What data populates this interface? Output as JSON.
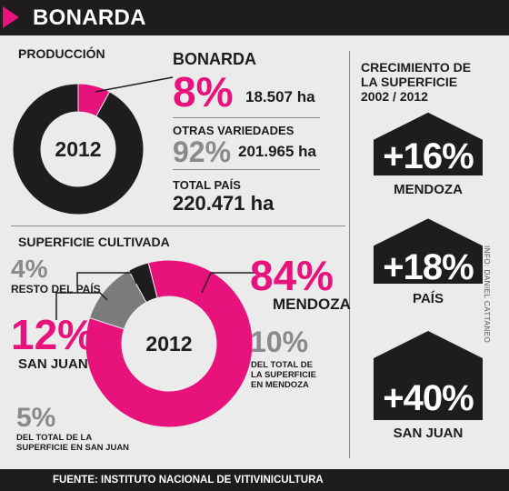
{
  "header": {
    "title": "BONARDA"
  },
  "produccion": {
    "title": "PRODUCCIÓN",
    "year": "2012",
    "bonarda_label": "BONARDA",
    "bonarda_pct": "8%",
    "bonarda_ha": "18.507 ha",
    "otras_label": "OTRAS VARIEDADES",
    "otras_pct": "92%",
    "otras_ha": "201.965 ha",
    "total_label": "TOTAL PAÍS",
    "total_value": "220.471 ha"
  },
  "superficie": {
    "title": "SUPERFICIE CULTIVADA",
    "year": "2012",
    "resto_pct": "4%",
    "resto_label": "RESTO DEL PAÍS",
    "mendoza_pct": "84%",
    "mendoza_label": "MENDOZA",
    "mendoza_sub_pct": "10%",
    "mendoza_sub_text": [
      "DEL TOTAL DE",
      "LA SUPERFICIE",
      "EN MENDOZA"
    ],
    "sanjuan_pct": "12%",
    "sanjuan_label": "SAN JUAN",
    "sanjuan_sub_pct": "5%",
    "sanjuan_sub_text": [
      "DEL TOTAL DE LA",
      "SUPERFICIE EN SAN JUAN"
    ]
  },
  "crecimiento": {
    "title": [
      "CRECIMIENTO DE",
      "LA SUPERFICIE",
      "2002 / 2012"
    ],
    "items": [
      {
        "value": "+16%",
        "label": "MENDOZA"
      },
      {
        "value": "+18%",
        "label": "PAÍS"
      },
      {
        "value": "+40%",
        "label": "SAN JUAN"
      }
    ]
  },
  "credit": "INFO: DANIEL CATTANEO",
  "footer": "FUENTE: INSTITUTO NACIONAL DE VITIVINICULTURA",
  "colors": {
    "accent": "#e8127c",
    "dark": "#1e1c1d",
    "gray": "#7b7b7b",
    "background": "#ebebeb"
  },
  "chart_data": [
    {
      "type": "pie",
      "title": "PRODUCCIÓN",
      "center_label": "2012",
      "categories": [
        "BONARDA",
        "OTRAS VARIEDADES"
      ],
      "values": [
        8,
        92
      ],
      "colors": [
        "#e8127c",
        "#1e1c1d"
      ]
    },
    {
      "type": "pie",
      "title": "SUPERFICIE CULTIVADA",
      "center_label": "2012",
      "categories": [
        "MENDOZA",
        "SAN JUAN",
        "RESTO DEL PAÍS"
      ],
      "values": [
        84,
        12,
        4
      ],
      "colors": [
        "#e8127c",
        "#7b7b7b",
        "#1e1c1d"
      ]
    },
    {
      "type": "bar",
      "title": "CRECIMIENTO DE LA SUPERFICIE 2002 / 2012",
      "categories": [
        "MENDOZA",
        "PAÍS",
        "SAN JUAN"
      ],
      "values": [
        16,
        18,
        40
      ],
      "colors": [
        "#1e1c1d",
        "#1e1c1d",
        "#1e1c1d"
      ]
    }
  ]
}
